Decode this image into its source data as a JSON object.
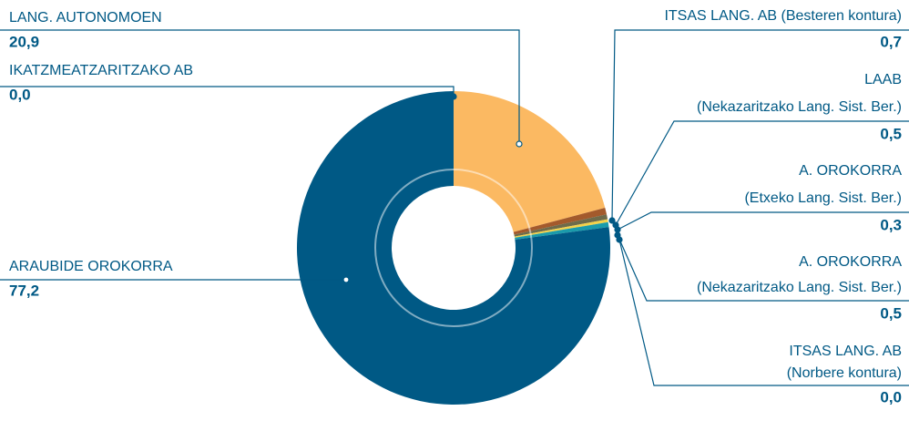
{
  "chart_data": {
    "type": "donut",
    "categories": [
      [
        "LANG. AUTONOMOEN"
      ],
      [
        "ITSAS LANG. AB (Besteren kontura)"
      ],
      [
        "LAAB",
        "(Nekazaritzako Lang. Sist. Ber.)"
      ],
      [
        "A. OROKORRA",
        "(Etxeko Lang. Sist. Ber.)"
      ],
      [
        "A. OROKORRA",
        "(Nekazaritzako Lang. Sist. Ber.)"
      ],
      [
        "ITSAS LANG. AB",
        "(Norbere kontura)"
      ],
      [
        "ARAUBIDE OROKORRA"
      ],
      [
        "IKATZMEATZARITZAKO AB"
      ]
    ],
    "values": [
      20.9,
      0.7,
      0.5,
      0.3,
      0.5,
      0.0,
      77.2,
      0.0
    ],
    "value_labels": [
      "20,9",
      "0,7",
      "0,5",
      "0,3",
      "0,5",
      "0,0",
      "77,2",
      "0,0"
    ],
    "colors": [
      "#fbb962",
      "#a35a2c",
      "#6e6b4a",
      "#f3d24b",
      "#1a9bab",
      "#0b7a99",
      "#005985",
      "#333333"
    ]
  }
}
